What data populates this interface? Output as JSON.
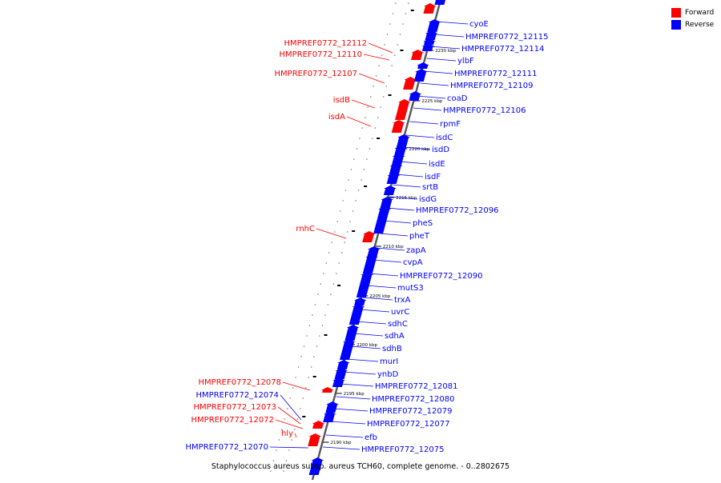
{
  "legend": {
    "forward_label": "Forward",
    "reverse_label": "Reverse",
    "forward_color": "#ff0000",
    "reverse_color": "#0000ff"
  },
  "caption": "Staphylococcus aureus subsp. aureus TCH60, complete genome. - 0..2802675",
  "ticks": [
    "2230 kbp",
    "2225 kbp",
    "2220 kbp",
    "2215 kbp",
    "2210 kbp",
    "2205 kbp",
    "2200 kbp",
    "2195 kbp",
    "2190 kbp"
  ],
  "forward_genes": [
    "HMPREF0772_12112",
    "HMPREF0772_12110",
    "HMPREF0772_12107",
    "isdB",
    "isdA",
    "rnhC",
    "HMPREF0772_12078",
    "HMPREF0772_12073",
    "HMPREF0772_12072",
    "hly"
  ],
  "reverse_genes_left": [
    "HMPREF0772_12074",
    "HMPREF0772_12070"
  ],
  "reverse_genes": [
    "cyoE",
    "HMPREF0772_12115",
    "HMPREF0772_12114",
    "ylbF",
    "HMPREF0772_12111",
    "HMPREF0772_12109",
    "coaD",
    "HMPREF0772_12106",
    "rpmF",
    "isdC",
    "isdD",
    "isdE",
    "isdF",
    "srtB",
    "isdG",
    "HMPREF0772_12096",
    "pheS",
    "pheT",
    "zapA",
    "cvpA",
    "HMPREF0772_12090",
    "mutS3",
    "trxA",
    "uvrC",
    "sdhC",
    "sdhA",
    "sdhB",
    "murI",
    "ynbD",
    "HMPREF0772_12081",
    "HMPREF0772_12080",
    "HMPREF0772_12079",
    "HMPREF0772_12077",
    "efb",
    "HMPREF0772_12075"
  ]
}
